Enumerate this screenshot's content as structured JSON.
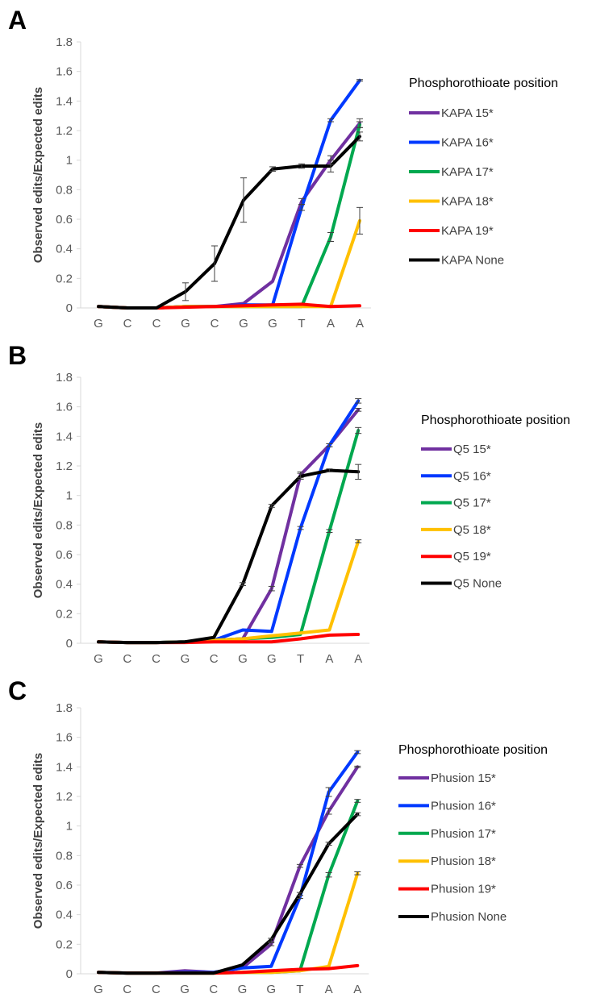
{
  "chart_data": [
    {
      "panel_label": "A",
      "type": "line",
      "ylabel": "Observed edits/Expected edits",
      "xlabel": "",
      "ylim": [
        0,
        1.8
      ],
      "yticks": [
        "0",
        "0.2",
        "0.4",
        "0.6",
        "0.8",
        "1",
        "1.2",
        "1.4",
        "1.6",
        "1.8"
      ],
      "categories": [
        "G",
        "C",
        "C",
        "G",
        "C",
        "G",
        "G",
        "T",
        "A",
        "A"
      ],
      "legend_title": "Phosphorothioate position",
      "legend_position": "right",
      "series": [
        {
          "name": "KAPA 15*",
          "color": "#7030A0",
          "values": [
            0.01,
            0.0,
            0.0,
            0.01,
            0.01,
            0.03,
            0.18,
            0.72,
            1.0,
            1.25
          ],
          "errors": [
            0,
            0,
            0,
            0,
            0,
            0,
            0,
            0.02,
            0.03,
            0.03
          ]
        },
        {
          "name": "KAPA 16*",
          "color": "#0039FF",
          "values": [
            0.01,
            0.0,
            0.0,
            0.01,
            0.01,
            0.02,
            0.02,
            0.68,
            1.27,
            1.54
          ],
          "errors": [
            0,
            0,
            0,
            0,
            0,
            0,
            0,
            0.02,
            0.01,
            0.005
          ]
        },
        {
          "name": "KAPA 17*",
          "color": "#00A84F",
          "values": [
            0.01,
            0.0,
            0.0,
            0.01,
            0.01,
            0.01,
            0.01,
            0.01,
            0.48,
            1.24
          ],
          "errors": [
            0,
            0,
            0,
            0,
            0,
            0,
            0,
            0,
            0.03,
            0.02
          ]
        },
        {
          "name": "KAPA 18*",
          "color": "#FFC000",
          "values": [
            0.01,
            0.0,
            0.0,
            0.01,
            0.01,
            0.01,
            0.01,
            0.01,
            0.01,
            0.59
          ],
          "errors": [
            0,
            0,
            0,
            0,
            0,
            0,
            0,
            0,
            0,
            0.09
          ]
        },
        {
          "name": "KAPA 19*",
          "color": "#FF0000",
          "values": [
            0.01,
            0.0,
            0.0,
            0.005,
            0.01,
            0.015,
            0.02,
            0.025,
            0.01,
            0.015
          ],
          "errors": [
            0,
            0,
            0,
            0,
            0,
            0,
            0,
            0,
            0,
            0
          ]
        },
        {
          "name": "KAPA None",
          "color": "#000000",
          "values": [
            0.01,
            0.0,
            0.0,
            0.11,
            0.3,
            0.73,
            0.94,
            0.96,
            0.96,
            1.16
          ],
          "errors": [
            0,
            0,
            0,
            0.06,
            0.12,
            0.15,
            0.015,
            0.015,
            0.04,
            0.03
          ]
        }
      ]
    },
    {
      "panel_label": "B",
      "type": "line",
      "ylabel": "Observed edits/Expected edits",
      "xlabel": "",
      "ylim": [
        0,
        1.8
      ],
      "yticks": [
        "0",
        "0.2",
        "0.4",
        "0.6",
        "0.8",
        "1",
        "1.2",
        "1.4",
        "1.6",
        "1.8"
      ],
      "categories": [
        "G",
        "C",
        "C",
        "G",
        "C",
        "G",
        "G",
        "T",
        "A",
        "A"
      ],
      "legend_title": "Phosphorothioate position",
      "legend_position": "right",
      "series": [
        {
          "name": "Q5 15*",
          "color": "#7030A0",
          "values": [
            0.01,
            0.005,
            0.005,
            0.01,
            0.02,
            0.03,
            0.37,
            1.14,
            1.34,
            1.58
          ],
          "errors": [
            0,
            0,
            0,
            0,
            0,
            0,
            0.015,
            0.02,
            0.01,
            0.01
          ]
        },
        {
          "name": "Q5 16*",
          "color": "#0039FF",
          "values": [
            0.01,
            0.005,
            0.005,
            0.01,
            0.02,
            0.09,
            0.08,
            0.78,
            1.34,
            1.64
          ],
          "errors": [
            0,
            0,
            0,
            0,
            0,
            0,
            0,
            0.01,
            0.01,
            0.015
          ]
        },
        {
          "name": "Q5 17*",
          "color": "#00A84F",
          "values": [
            0.01,
            0.005,
            0.005,
            0.01,
            0.02,
            0.03,
            0.04,
            0.06,
            0.76,
            1.44
          ],
          "errors": [
            0,
            0,
            0,
            0,
            0,
            0,
            0,
            0,
            0.01,
            0.02
          ]
        },
        {
          "name": "Q5 18*",
          "color": "#FFC000",
          "values": [
            0.01,
            0.005,
            0.005,
            0.01,
            0.02,
            0.03,
            0.05,
            0.07,
            0.09,
            0.69
          ],
          "errors": [
            0,
            0,
            0,
            0,
            0,
            0,
            0,
            0,
            0,
            0.01
          ]
        },
        {
          "name": "Q5 19*",
          "color": "#FF0000",
          "values": [
            0.01,
            0.005,
            0.005,
            0.005,
            0.01,
            0.01,
            0.01,
            0.03,
            0.055,
            0.06
          ],
          "errors": [
            0,
            0,
            0,
            0,
            0,
            0,
            0,
            0,
            0,
            0
          ]
        },
        {
          "name": "Q5 None",
          "color": "#000000",
          "values": [
            0.01,
            0.005,
            0.005,
            0.01,
            0.04,
            0.4,
            0.93,
            1.13,
            1.17,
            1.16
          ],
          "errors": [
            0,
            0,
            0,
            0,
            0,
            0.01,
            0.01,
            0.02,
            0.01,
            0.05
          ]
        }
      ]
    },
    {
      "panel_label": "C",
      "type": "line",
      "ylabel": "Observed edits/Expected edits",
      "xlabel": "",
      "ylim": [
        0,
        1.8
      ],
      "yticks": [
        "0",
        "0.2",
        "0.4",
        "0.6",
        "0.8",
        "1",
        "1.2",
        "1.4",
        "1.6",
        "1.8"
      ],
      "categories": [
        "G",
        "C",
        "C",
        "G",
        "C",
        "G",
        "G",
        "T",
        "A",
        "A"
      ],
      "legend_title": "Phosphorothioate position",
      "legend_position": "right",
      "series": [
        {
          "name": "Phusion 15*",
          "color": "#7030A0",
          "values": [
            0.01,
            0.005,
            0.005,
            0.02,
            0.01,
            0.04,
            0.2,
            0.73,
            1.1,
            1.4
          ],
          "errors": [
            0,
            0,
            0,
            0,
            0,
            0,
            0.01,
            0.01,
            0.02,
            0.005
          ]
        },
        {
          "name": "Phusion 16*",
          "color": "#0039FF",
          "values": [
            0.01,
            0.005,
            0.005,
            0.01,
            0.01,
            0.04,
            0.05,
            0.52,
            1.23,
            1.5
          ],
          "errors": [
            0,
            0,
            0,
            0,
            0,
            0,
            0,
            0.01,
            0.03,
            0.01
          ]
        },
        {
          "name": "Phusion 17*",
          "color": "#00A84F",
          "values": [
            0.01,
            0.005,
            0.005,
            0.005,
            0.005,
            0.01,
            0.01,
            0.02,
            0.67,
            1.17
          ],
          "errors": [
            0,
            0,
            0,
            0,
            0,
            0,
            0,
            0,
            0.015,
            0.01
          ]
        },
        {
          "name": "Phusion 18*",
          "color": "#FFC000",
          "values": [
            0.01,
            0.005,
            0.005,
            0.005,
            0.005,
            0.01,
            0.01,
            0.02,
            0.05,
            0.68
          ],
          "errors": [
            0,
            0,
            0,
            0,
            0,
            0,
            0,
            0,
            0,
            0.01
          ]
        },
        {
          "name": "Phusion 19*",
          "color": "#FF0000",
          "values": [
            0.01,
            0.005,
            0.005,
            0.005,
            0.005,
            0.01,
            0.02,
            0.03,
            0.035,
            0.055
          ],
          "errors": [
            0,
            0,
            0,
            0,
            0,
            0,
            0,
            0,
            0,
            0
          ]
        },
        {
          "name": "Phusion None",
          "color": "#000000",
          "values": [
            0.01,
            0.005,
            0.005,
            0.005,
            0.005,
            0.06,
            0.23,
            0.54,
            0.88,
            1.08
          ],
          "errors": [
            0,
            0,
            0,
            0,
            0,
            0,
            0.01,
            0.01,
            0.01,
            0.01
          ]
        }
      ]
    }
  ]
}
